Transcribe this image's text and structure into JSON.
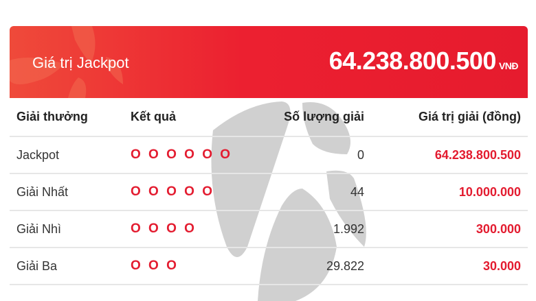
{
  "banner": {
    "label": "Giá trị Jackpot",
    "value": "64.238.800.500",
    "unit": "VNĐ"
  },
  "table": {
    "headers": [
      "Giải thưởng",
      "Kết quả",
      "Số lượng giải",
      "Giá trị giải (đồng)"
    ],
    "rows": [
      {
        "prize": "Jackpot",
        "result": "O O O O O O",
        "count": "0",
        "value": "64.238.800.500"
      },
      {
        "prize": "Giải Nhất",
        "result": "O O O O O",
        "count": "44",
        "value": "10.000.000"
      },
      {
        "prize": "Giải Nhì",
        "result": "O O O O",
        "count": "1.992",
        "value": "300.000"
      },
      {
        "prize": "Giải Ba",
        "result": "O O O",
        "count": "29.822",
        "value": "30.000"
      }
    ]
  },
  "colors": {
    "accent": "#e31b2f",
    "watermark": "#cfcfcf"
  }
}
